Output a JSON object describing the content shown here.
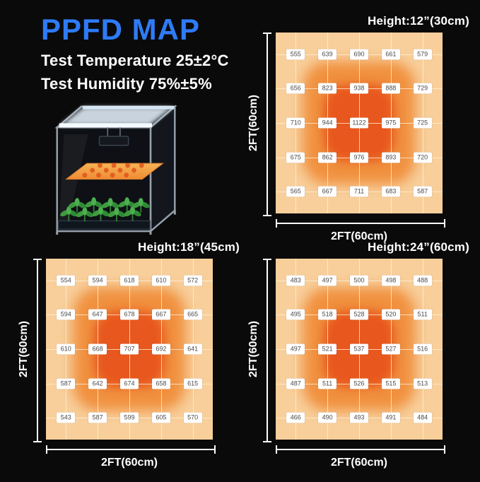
{
  "header": {
    "title": "PPFD MAP",
    "line1": "Test Temperature 25±2°C",
    "line2": "Test Humidity 75%±5%"
  },
  "illustration": {
    "name": "grow-tent-with-led-light-and-seedlings"
  },
  "colors": {
    "title_blue": "#2e7bf7",
    "background": "#0a0a0b",
    "heat_outer": "#f8cf9b",
    "heat_mid": "#f0903e",
    "heat_hot": "#e8571d",
    "value_label_bg": "#ffffff",
    "value_label_text": "#4a4a4a",
    "axis_white": "#ffffff"
  },
  "chart_data": [
    {
      "type": "heatmap",
      "title": "Height:12”(30cm)",
      "xlabel": "2FT(60cm)",
      "ylabel": "2FT(60cm)",
      "values": [
        [
          555,
          639,
          690,
          661,
          579
        ],
        [
          656,
          823,
          938,
          888,
          729
        ],
        [
          710,
          944,
          1122,
          975,
          725
        ],
        [
          675,
          862,
          976,
          893,
          720
        ],
        [
          565,
          667,
          711,
          683,
          587
        ]
      ]
    },
    {
      "type": "heatmap",
      "title": "Height:18”(45cm)",
      "xlabel": "2FT(60cm)",
      "ylabel": "2FT(60cm)",
      "values": [
        [
          554,
          594,
          618,
          610,
          572
        ],
        [
          594,
          647,
          678,
          667,
          665
        ],
        [
          610,
          668,
          707,
          692,
          641
        ],
        [
          587,
          642,
          674,
          658,
          615
        ],
        [
          543,
          587,
          599,
          605,
          570
        ]
      ]
    },
    {
      "type": "heatmap",
      "title": "Height:24”(60cm)",
      "xlabel": "2FT(60cm)",
      "ylabel": "2FT(60cm)",
      "values": [
        [
          483,
          497,
          500,
          498,
          488
        ],
        [
          495,
          518,
          528,
          520,
          511
        ],
        [
          497,
          521,
          537,
          527,
          516
        ],
        [
          487,
          511,
          526,
          515,
          513
        ],
        [
          466,
          490,
          493,
          491,
          484
        ]
      ]
    }
  ]
}
